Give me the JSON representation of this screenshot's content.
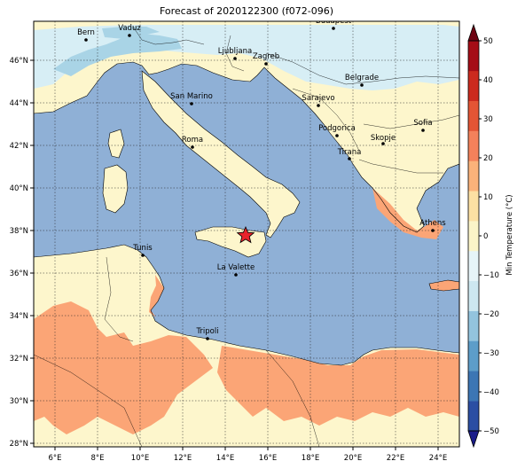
{
  "title": "Forecast of 2020122300 (f072-096)",
  "colorbar": {
    "label": "Min Temperature (°C)",
    "ticks": [
      "50",
      "40",
      "30",
      "20",
      "10",
      "0",
      "−10",
      "−20",
      "−30",
      "−40",
      "−50"
    ],
    "colors": [
      "#1a1c8a",
      "#2b4ea3",
      "#3c76b4",
      "#5d9dc9",
      "#93c4de",
      "#cde7f0",
      "#e6f4f8",
      "#fbf4c8",
      "#fce0a3",
      "#fbb27a",
      "#f4815b",
      "#e45535",
      "#cc2a1e",
      "#a50d16",
      "#6e0312"
    ]
  },
  "axes": {
    "x_ticks": [
      "6°E",
      "8°E",
      "10°E",
      "12°E",
      "14°E",
      "16°E",
      "18°E",
      "20°E",
      "22°E",
      "24°E"
    ],
    "y_ticks": [
      "46°N",
      "44°N",
      "42°N",
      "40°N",
      "38°N",
      "36°N",
      "34°N",
      "32°N",
      "30°N",
      "28°N"
    ]
  },
  "cities": [
    {
      "name": "Budapest"
    },
    {
      "name": "Vaduz"
    },
    {
      "name": "Bern"
    },
    {
      "name": "Ljubljana"
    },
    {
      "name": "Zagreb"
    },
    {
      "name": "Belgrade"
    },
    {
      "name": "San Marino"
    },
    {
      "name": "Sarajevo"
    },
    {
      "name": "Sofia"
    },
    {
      "name": "Podgorica"
    },
    {
      "name": "Skopje"
    },
    {
      "name": "Roma"
    },
    {
      "name": "Tirana"
    },
    {
      "name": "Athens"
    },
    {
      "name": "Tunis"
    },
    {
      "name": "La Valette"
    },
    {
      "name": "Tripoli"
    }
  ],
  "marker": {
    "symbol": "star",
    "color": "#e8232b"
  },
  "colors": {
    "sea": "#8fb0d6",
    "land_warm": "#fdf6cc",
    "land_hot": "#fba576",
    "land_cold": "#d7eef5",
    "land_cool": "#a9d4e6"
  }
}
